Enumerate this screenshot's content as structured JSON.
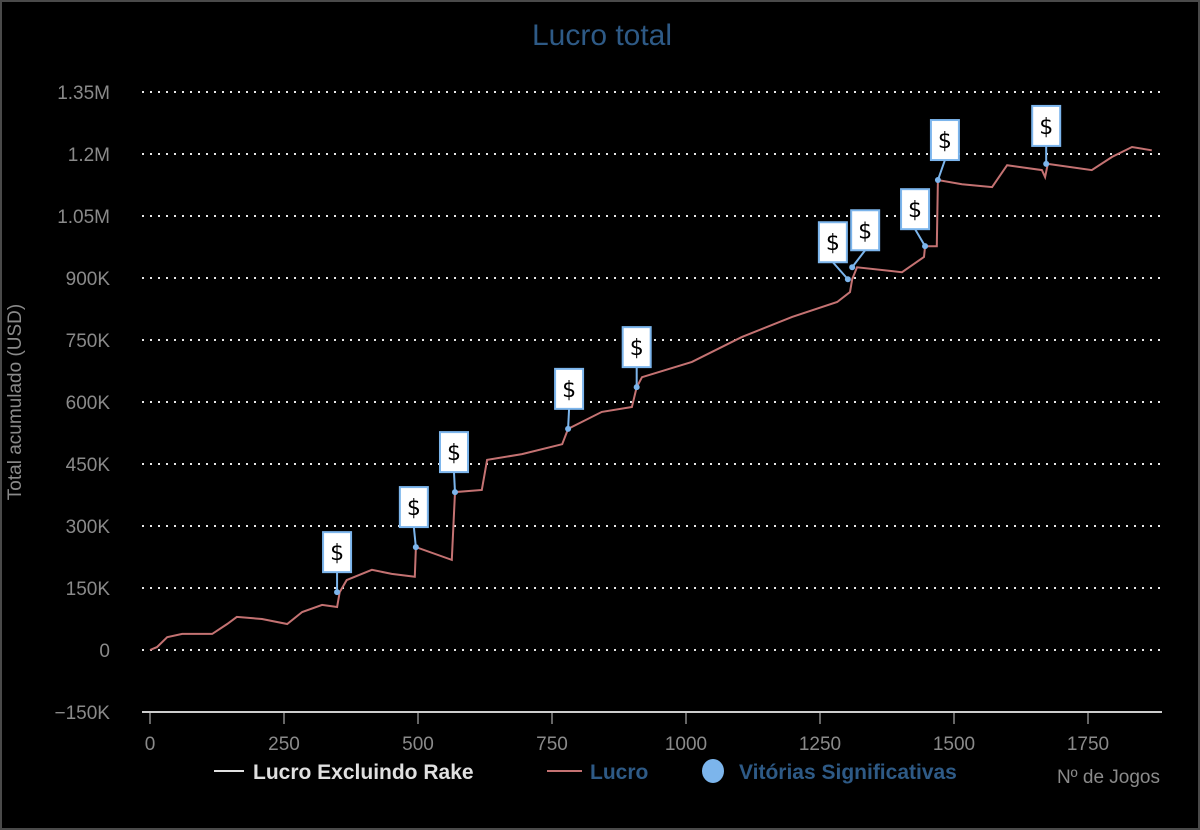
{
  "chart_data": {
    "type": "line",
    "title": "Lucro total",
    "xlabel": "Nº de Jogos",
    "ylabel": "Total acumulado (USD)",
    "xlim": [
      0,
      1888
    ],
    "ylim": [
      -150000,
      1350000
    ],
    "x_ticks": [
      0,
      250,
      500,
      750,
      1000,
      1250,
      1500,
      1750
    ],
    "x_tick_labels": [
      "0",
      "250",
      "500",
      "750",
      "1000",
      "1250",
      "1500",
      "1750"
    ],
    "y_ticks": [
      -150000,
      0,
      150000,
      300000,
      450000,
      600000,
      750000,
      900000,
      1050000,
      1200000,
      1350000
    ],
    "y_tick_labels": [
      "−150K",
      "0",
      "150K",
      "300K",
      "450K",
      "600K",
      "750K",
      "900K",
      "1.05M",
      "1.2M",
      "1.35M"
    ],
    "grid": "horizontal dotted",
    "legend_position": "bottom",
    "legend": [
      {
        "name": "Lucro Excluindo Rake",
        "color": "#e0e0e0"
      },
      {
        "name": "Lucro",
        "color": "#c47272"
      },
      {
        "name": "Vitórias Significativas",
        "color": "#7cb5ec"
      }
    ],
    "series": [
      {
        "name": "Lucro",
        "color": "#c47272",
        "x": [
          0,
          13,
          32,
          60,
          116,
          144,
          162,
          209,
          256,
          284,
          321,
          349,
          354,
          367,
          414,
          451,
          494,
          496,
          563,
          569,
          619,
          629,
          694,
          769,
          780,
          843,
          899,
          908,
          918,
          1011,
          1104,
          1198,
          1282,
          1306,
          1310,
          1319,
          1403,
          1444,
          1446,
          1468,
          1470,
          1515,
          1571,
          1599,
          1664,
          1670,
          1675,
          1757,
          1795,
          1832,
          1869
        ],
        "y": [
          0,
          7000,
          31000,
          39000,
          39000,
          63000,
          80000,
          75000,
          63000,
          92000,
          109000,
          104000,
          140000,
          169000,
          194000,
          184000,
          177000,
          249000,
          218000,
          382000,
          387000,
          460000,
          474000,
          498000,
          535000,
          576000,
          588000,
          636000,
          660000,
          697000,
          757000,
          806000,
          842000,
          866000,
          897000,
          926000,
          914000,
          951000,
          977000,
          977000,
          1137000,
          1127000,
          1120000,
          1173000,
          1161000,
          1144000,
          1176000,
          1161000,
          1193000,
          1217000,
          1209000
        ]
      }
    ],
    "markers": {
      "name": "Vitórias Significativas",
      "symbol": "$",
      "x": [
        349,
        496,
        569,
        780,
        908,
        1302,
        1310,
        1446,
        1470,
        1672
      ],
      "y": [
        140000,
        249000,
        382000,
        535000,
        636000,
        897000,
        926000,
        977000,
        1137000,
        1176000
      ]
    }
  }
}
